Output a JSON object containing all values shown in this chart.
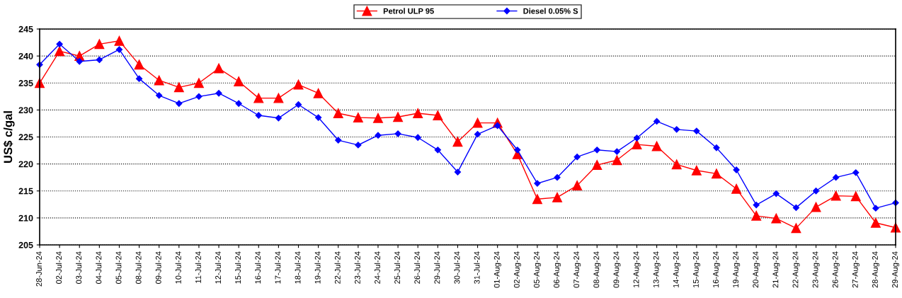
{
  "chart_data": {
    "type": "line",
    "ylabel": "US$ c/gal",
    "categories": [
      "28-Jun-24",
      "02-Jul-24",
      "03-Jul-24",
      "04-Jul-24",
      "05-Jul-24",
      "08-Jul-24",
      "09-Jul-24",
      "10-Jul-24",
      "11-Jul-24",
      "12-Jul-24",
      "15-Jul-24",
      "16-Jul-24",
      "17-Jul-24",
      "18-Jul-24",
      "19-Jul-24",
      "22-Jul-24",
      "23-Jul-24",
      "24-Jul-24",
      "25-Jul-24",
      "26-Jul-24",
      "29-Jul-24",
      "30-Jul-24",
      "31-Jul-24",
      "01-Aug-24",
      "02-Aug-24",
      "05-Aug-24",
      "06-Aug-24",
      "07-Aug-24",
      "08-Aug-24",
      "09-Aug-24",
      "12-Aug-24",
      "13-Aug-24",
      "14-Aug-24",
      "15-Aug-24",
      "16-Aug-24",
      "19-Aug-24",
      "20-Aug-24",
      "21-Aug-24",
      "22-Aug-24",
      "23-Aug-24",
      "26-Aug-24",
      "27-Aug-24",
      "28-Aug-24",
      "29-Aug-24"
    ],
    "series": [
      {
        "name": "Petrol ULP 95",
        "color": "#ff0000",
        "marker": "triangle",
        "values": [
          235.0,
          240.9,
          240.0,
          242.2,
          242.8,
          238.4,
          235.5,
          234.2,
          235.0,
          237.7,
          235.3,
          232.2,
          232.2,
          234.7,
          233.1,
          229.4,
          228.6,
          228.5,
          228.7,
          229.4,
          229.0,
          224.1,
          227.6,
          227.6,
          221.8,
          213.5,
          213.8,
          216.0,
          219.8,
          220.7,
          223.6,
          223.3,
          219.9,
          218.8,
          218.2,
          215.4,
          210.4,
          209.9,
          208.1,
          212.0,
          214.1,
          214.0,
          209.1,
          208.2
        ]
      },
      {
        "name": "Diesel 0.05% S",
        "color": "#0000ff",
        "marker": "diamond",
        "values": [
          238.4,
          242.2,
          239.0,
          239.3,
          241.2,
          235.8,
          232.7,
          231.2,
          232.5,
          233.1,
          231.2,
          229.0,
          228.5,
          231.0,
          228.6,
          224.4,
          223.5,
          225.3,
          225.6,
          224.9,
          222.6,
          218.5,
          225.5,
          227.1,
          222.6,
          216.4,
          217.5,
          221.3,
          222.6,
          222.3,
          224.8,
          227.9,
          226.4,
          226.1,
          223.0,
          218.9,
          212.4,
          214.5,
          211.9,
          215.0,
          217.5,
          218.4,
          211.8,
          212.8
        ]
      }
    ],
    "ylim": [
      205,
      245
    ],
    "yticks": [
      205,
      210,
      215,
      220,
      225,
      230,
      235,
      240,
      245
    ],
    "grid": "y",
    "legend": "top",
    "line_style": "solid"
  }
}
